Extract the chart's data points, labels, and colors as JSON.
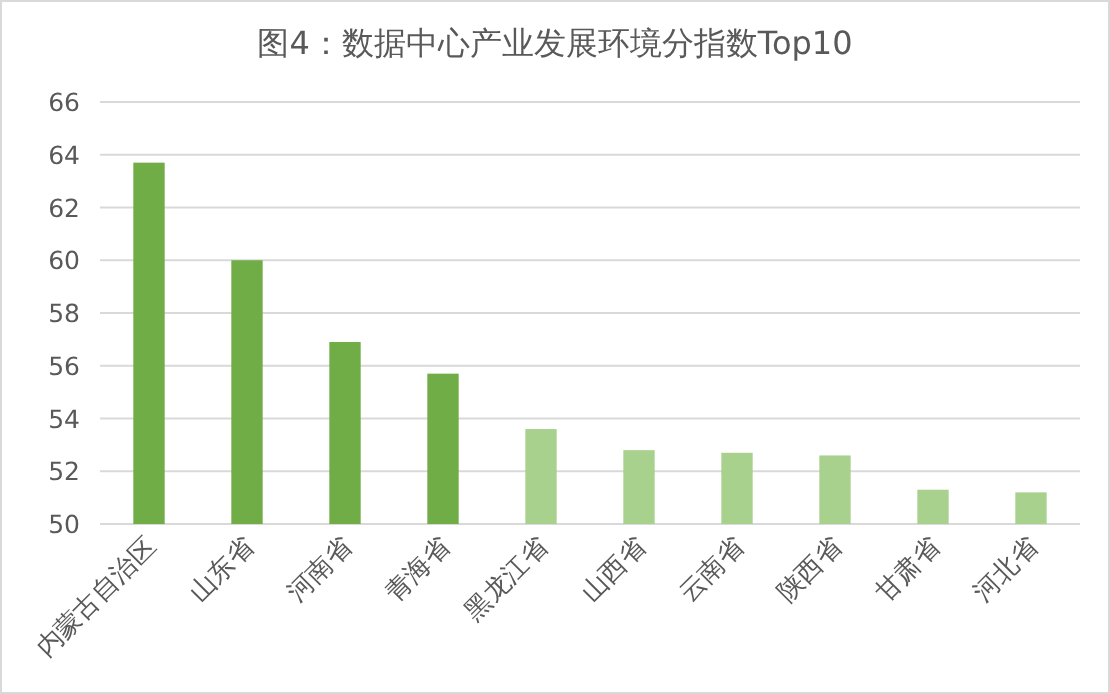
{
  "chart_data": {
    "type": "bar",
    "title": "图4：数据中心产业发展环境分指数Top10",
    "categories": [
      "内蒙古自治区",
      "山东省",
      "河南省",
      "青海省",
      "黑龙江省",
      "山西省",
      "云南省",
      "陕西省",
      "甘肃省",
      "河北省"
    ],
    "values": [
      63.7,
      60.0,
      56.9,
      55.7,
      53.6,
      52.8,
      52.7,
      52.6,
      51.3,
      51.2
    ],
    "colors": [
      "#70ad47",
      "#70ad47",
      "#70ad47",
      "#70ad47",
      "#a9d18e",
      "#a9d18e",
      "#a9d18e",
      "#a9d18e",
      "#a9d18e",
      "#a9d18e"
    ],
    "ylim": [
      50,
      66
    ],
    "yticks": [
      50,
      52,
      54,
      56,
      58,
      60,
      62,
      64,
      66
    ],
    "grid": "y"
  }
}
